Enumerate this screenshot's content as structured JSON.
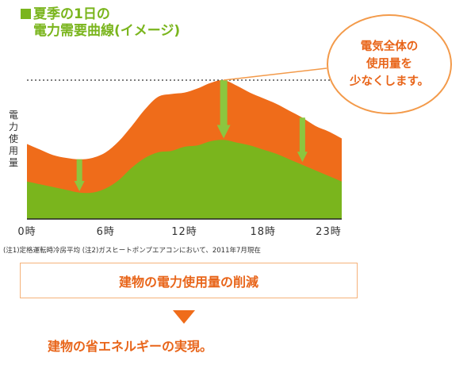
{
  "title": {
    "line1": "夏季の1日の",
    "line2": "電力需要曲線(イメージ)"
  },
  "callout": {
    "line1": "電気全体の",
    "line2": "使用量を",
    "line3": "少なくします。"
  },
  "note": "(注1)定格運転時冷房平均 (注2)ガスヒートポンプエアコンにおいて、2011年7月現在",
  "reduction_box": "建物の電力使用量の削減",
  "final_text": "建物の省エネルギーの実現。",
  "colors": {
    "green": "#7ab51d",
    "orange": "#ef6c1a",
    "arrow_green": "#8cc63f"
  },
  "chart_data": {
    "type": "area",
    "title": "夏季の1日の電力需要曲線(イメージ)",
    "xlabel": "",
    "ylabel": "電力使用量",
    "x_ticks": [
      "0時",
      "6時",
      "12時",
      "18時",
      "23時"
    ],
    "xlim": [
      0,
      24
    ],
    "ylim": [
      0,
      100
    ],
    "grid": false,
    "peak_line": 100,
    "series": [
      {
        "name": "",
        "color": "#ef6c1a",
        "x": [
          0,
          1,
          2,
          3,
          4,
          5,
          6,
          7,
          8,
          9,
          10,
          11,
          12,
          13,
          14,
          15,
          16,
          17,
          18,
          19,
          20,
          21,
          22,
          23,
          24
        ],
        "values": [
          54,
          50,
          46,
          44,
          43,
          44,
          48,
          56,
          67,
          79,
          88,
          90,
          91,
          94,
          98,
          100,
          96,
          91,
          87,
          83,
          78,
          73,
          67,
          63,
          58
        ]
      },
      {
        "name": "",
        "color": "#7ab51d",
        "x": [
          0,
          1,
          2,
          3,
          4,
          5,
          6,
          7,
          8,
          9,
          10,
          11,
          12,
          13,
          14,
          15,
          16,
          17,
          18,
          19,
          20,
          21,
          22,
          23,
          24
        ],
        "values": [
          27,
          25,
          23,
          21,
          19,
          19,
          22,
          28,
          37,
          44,
          48,
          49,
          52,
          53,
          56,
          57,
          55,
          53,
          50,
          47,
          43,
          39,
          35,
          31,
          27
        ]
      }
    ],
    "arrows": [
      {
        "x": 4,
        "from": 43,
        "to": 20
      },
      {
        "x": 15,
        "from": 100,
        "to": 58
      },
      {
        "x": 21,
        "from": 73,
        "to": 41
      }
    ]
  }
}
